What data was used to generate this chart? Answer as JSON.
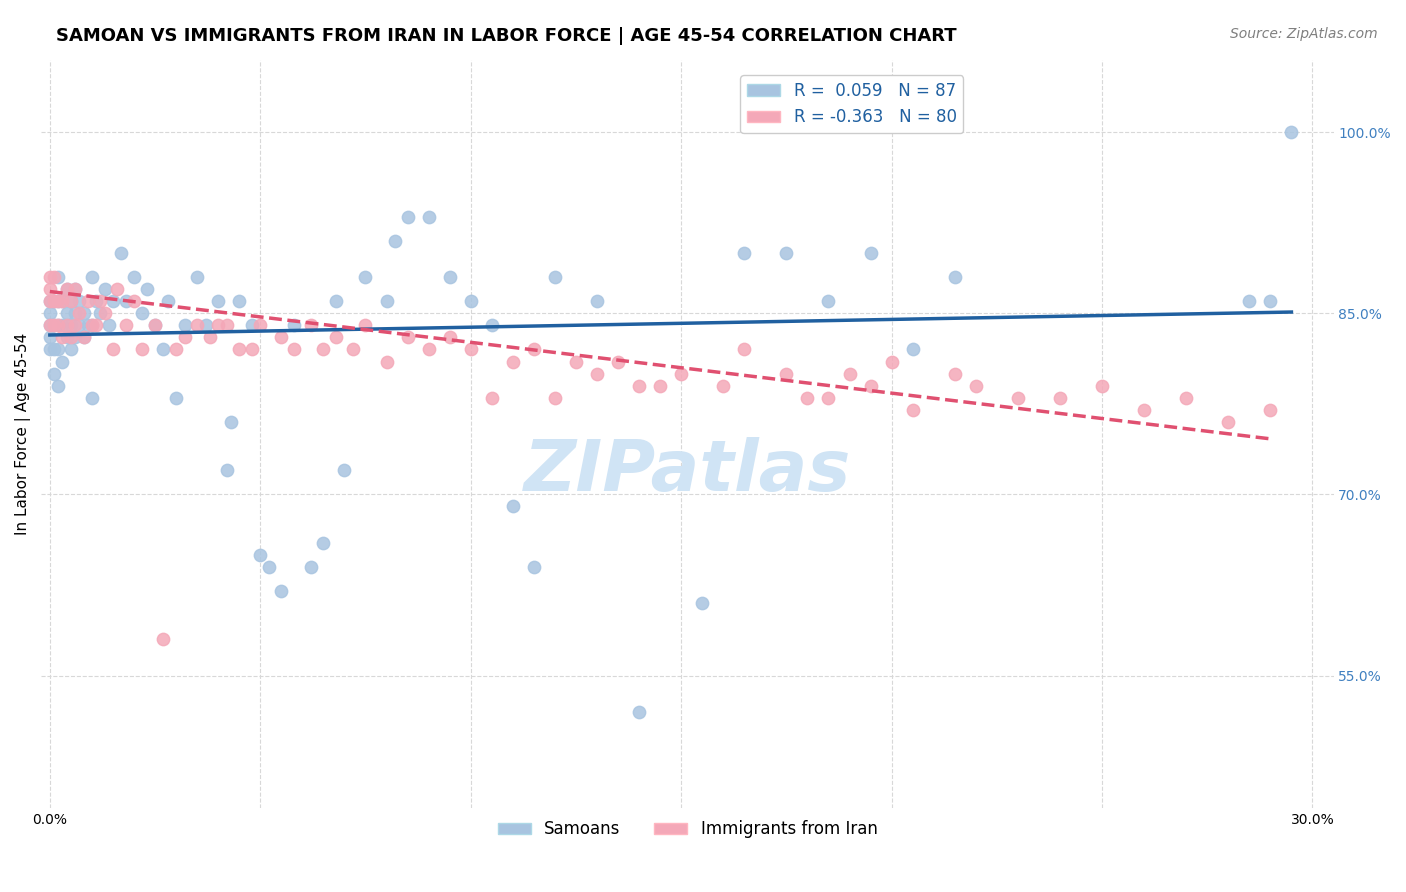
{
  "title": "SAMOAN VS IMMIGRANTS FROM IRAN IN LABOR FORCE | AGE 45-54 CORRELATION CHART",
  "source": "Source: ZipAtlas.com",
  "ylabel": "In Labor Force | Age 45-54",
  "xlabel": "",
  "xlim": [
    -0.002,
    0.305
  ],
  "ylim": [
    0.44,
    1.06
  ],
  "yticks": [
    0.55,
    0.7,
    0.85,
    1.0
  ],
  "ytick_labels": [
    "55.0%",
    "70.0%",
    "85.0%",
    "100.0%"
  ],
  "xticks": [
    0.0,
    0.05,
    0.1,
    0.15,
    0.2,
    0.25,
    0.3
  ],
  "xtick_labels": [
    "0.0%",
    "",
    "",
    "",
    "",
    "",
    "30.0%"
  ],
  "blue_color": "#a8c4e0",
  "pink_color": "#f4a8b8",
  "blue_line_color": "#2060a0",
  "pink_line_color": "#e05070",
  "watermark": "ZIPatlas",
  "legend_r_blue": "R =  0.059",
  "legend_n_blue": "N = 87",
  "legend_r_pink": "R = -0.363",
  "legend_n_pink": "N = 80",
  "blue_scatter_x": [
    0.0,
    0.0,
    0.0,
    0.0,
    0.0,
    0.001,
    0.001,
    0.001,
    0.001,
    0.002,
    0.002,
    0.002,
    0.002,
    0.002,
    0.003,
    0.003,
    0.003,
    0.004,
    0.004,
    0.004,
    0.005,
    0.005,
    0.005,
    0.006,
    0.006,
    0.006,
    0.007,
    0.007,
    0.008,
    0.008,
    0.009,
    0.01,
    0.01,
    0.01,
    0.011,
    0.012,
    0.013,
    0.014,
    0.015,
    0.017,
    0.018,
    0.02,
    0.022,
    0.023,
    0.025,
    0.027,
    0.028,
    0.03,
    0.032,
    0.035,
    0.037,
    0.04,
    0.042,
    0.043,
    0.045,
    0.048,
    0.05,
    0.052,
    0.055,
    0.058,
    0.062,
    0.065,
    0.068,
    0.07,
    0.075,
    0.08,
    0.082,
    0.085,
    0.09,
    0.095,
    0.1,
    0.105,
    0.11,
    0.115,
    0.12,
    0.13,
    0.14,
    0.155,
    0.165,
    0.175,
    0.185,
    0.195,
    0.205,
    0.215,
    0.285,
    0.29,
    0.295
  ],
  "blue_scatter_y": [
    0.82,
    0.83,
    0.84,
    0.85,
    0.86,
    0.8,
    0.82,
    0.84,
    0.86,
    0.79,
    0.82,
    0.84,
    0.86,
    0.88,
    0.81,
    0.84,
    0.86,
    0.83,
    0.85,
    0.87,
    0.82,
    0.84,
    0.86,
    0.83,
    0.85,
    0.87,
    0.84,
    0.86,
    0.83,
    0.85,
    0.84,
    0.78,
    0.84,
    0.88,
    0.86,
    0.85,
    0.87,
    0.84,
    0.86,
    0.9,
    0.86,
    0.88,
    0.85,
    0.87,
    0.84,
    0.82,
    0.86,
    0.78,
    0.84,
    0.88,
    0.84,
    0.86,
    0.72,
    0.76,
    0.86,
    0.84,
    0.65,
    0.64,
    0.62,
    0.84,
    0.64,
    0.66,
    0.86,
    0.72,
    0.88,
    0.86,
    0.91,
    0.93,
    0.93,
    0.88,
    0.86,
    0.84,
    0.69,
    0.64,
    0.88,
    0.86,
    0.52,
    0.61,
    0.9,
    0.9,
    0.86,
    0.9,
    0.82,
    0.88,
    0.86,
    0.86,
    1.0
  ],
  "pink_scatter_x": [
    0.0,
    0.0,
    0.0,
    0.0,
    0.001,
    0.001,
    0.001,
    0.002,
    0.002,
    0.003,
    0.003,
    0.004,
    0.004,
    0.005,
    0.005,
    0.006,
    0.006,
    0.007,
    0.008,
    0.009,
    0.01,
    0.011,
    0.012,
    0.013,
    0.015,
    0.016,
    0.018,
    0.02,
    0.022,
    0.025,
    0.027,
    0.03,
    0.032,
    0.035,
    0.038,
    0.04,
    0.042,
    0.045,
    0.048,
    0.05,
    0.055,
    0.058,
    0.062,
    0.065,
    0.068,
    0.072,
    0.075,
    0.08,
    0.085,
    0.09,
    0.095,
    0.1,
    0.105,
    0.11,
    0.115,
    0.12,
    0.125,
    0.13,
    0.135,
    0.14,
    0.145,
    0.15,
    0.16,
    0.165,
    0.175,
    0.18,
    0.185,
    0.19,
    0.195,
    0.2,
    0.205,
    0.215,
    0.22,
    0.23,
    0.24,
    0.25,
    0.26,
    0.27,
    0.28,
    0.29
  ],
  "pink_scatter_y": [
    0.84,
    0.86,
    0.87,
    0.88,
    0.84,
    0.86,
    0.88,
    0.84,
    0.86,
    0.83,
    0.86,
    0.84,
    0.87,
    0.83,
    0.86,
    0.84,
    0.87,
    0.85,
    0.83,
    0.86,
    0.84,
    0.84,
    0.86,
    0.85,
    0.82,
    0.87,
    0.84,
    0.86,
    0.82,
    0.84,
    0.58,
    0.82,
    0.83,
    0.84,
    0.83,
    0.84,
    0.84,
    0.82,
    0.82,
    0.84,
    0.83,
    0.82,
    0.84,
    0.82,
    0.83,
    0.82,
    0.84,
    0.81,
    0.83,
    0.82,
    0.83,
    0.82,
    0.78,
    0.81,
    0.82,
    0.78,
    0.81,
    0.8,
    0.81,
    0.79,
    0.79,
    0.8,
    0.79,
    0.82,
    0.8,
    0.78,
    0.78,
    0.8,
    0.79,
    0.81,
    0.77,
    0.8,
    0.79,
    0.78,
    0.78,
    0.79,
    0.77,
    0.78,
    0.76,
    0.77
  ],
  "blue_trend_x": [
    0.0,
    0.295
  ],
  "blue_trend_y": [
    0.832,
    0.851
  ],
  "pink_trend_x": [
    0.0,
    0.29
  ],
  "pink_trend_y": [
    0.868,
    0.746
  ],
  "grid_color": "#d8d8d8",
  "title_fontsize": 13,
  "axis_label_fontsize": 11,
  "tick_fontsize": 10,
  "legend_fontsize": 12,
  "watermark_fontsize": 52,
  "watermark_color": "#d0e4f5",
  "source_fontsize": 10,
  "right_tick_color": "#4080c0"
}
